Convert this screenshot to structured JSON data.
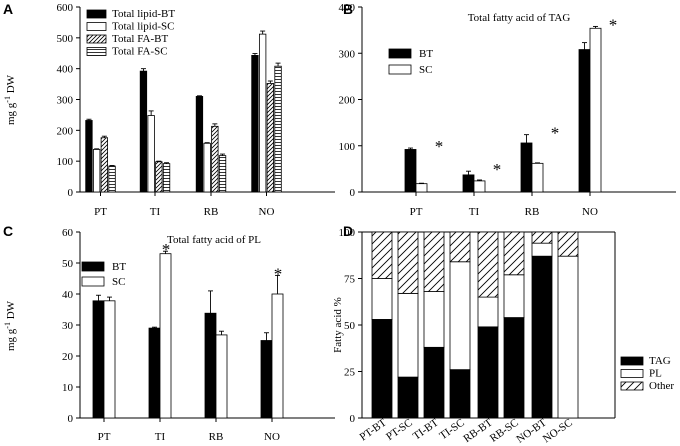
{
  "figure": {
    "panels": [
      "A",
      "B",
      "C",
      "D"
    ]
  },
  "chart_data": [
    {
      "panel": "A",
      "type": "bar",
      "title": "",
      "ylabel": "mg g-1 DW",
      "xlabel": "",
      "ylim": [
        0,
        600
      ],
      "yticks": [
        0,
        100,
        200,
        300,
        400,
        500,
        600
      ],
      "categories": [
        "PT",
        "TI",
        "RB",
        "NO"
      ],
      "series": [
        {
          "name": "Total lipid-BT",
          "pattern": "black",
          "values": [
            232,
            392,
            310,
            443
          ],
          "errors": [
            4,
            8,
            2,
            6
          ]
        },
        {
          "name": "Total lipid-SC",
          "pattern": "white",
          "values": [
            138,
            248,
            158,
            512
          ],
          "errors": [
            2,
            15,
            2,
            10
          ]
        },
        {
          "name": "Total FA-BT",
          "pattern": "diag",
          "values": [
            176,
            98,
            213,
            352
          ],
          "errors": [
            5,
            2,
            8,
            8
          ]
        },
        {
          "name": "Total FA-SC",
          "pattern": "horiz",
          "values": [
            84,
            92,
            118,
            408
          ],
          "errors": [
            2,
            3,
            5,
            10
          ]
        }
      ],
      "markers": [],
      "legend_position": "top-left"
    },
    {
      "panel": "B",
      "type": "bar",
      "title": "Total fatty acid of TAG",
      "ylabel": "",
      "xlabel": "",
      "ylim": [
        0,
        400
      ],
      "yticks": [
        0,
        100,
        200,
        300,
        400
      ],
      "categories": [
        "PT",
        "TI",
        "RB",
        "NO"
      ],
      "series": [
        {
          "name": "BT",
          "pattern": "black",
          "values": [
            92,
            37,
            106,
            308
          ],
          "errors": [
            3,
            8,
            18,
            15
          ]
        },
        {
          "name": "SC",
          "pattern": "white",
          "values": [
            18,
            24,
            62,
            354
          ],
          "errors": [
            1,
            2,
            1,
            4
          ]
        }
      ],
      "markers": [
        {
          "category": "PT",
          "text": "*"
        },
        {
          "category": "TI",
          "text": "*"
        },
        {
          "category": "RB",
          "text": "*"
        },
        {
          "category": "NO",
          "text": "*"
        }
      ],
      "legend_position": "left"
    },
    {
      "panel": "C",
      "type": "bar",
      "title": "Total fatty acid of PL",
      "ylabel": "mg g-1 DW",
      "xlabel": "",
      "ylim": [
        0,
        60
      ],
      "yticks": [
        0,
        10,
        20,
        30,
        40,
        50,
        60
      ],
      "categories": [
        "PT",
        "TI",
        "RB",
        "NO"
      ],
      "series": [
        {
          "name": "BT",
          "pattern": "black",
          "values": [
            37.8,
            29,
            33.8,
            25
          ],
          "errors": [
            1.8,
            0.3,
            7.2,
            2.5
          ]
        },
        {
          "name": "SC",
          "pattern": "white",
          "values": [
            37.8,
            53,
            26.8,
            40
          ],
          "errors": [
            1.2,
            0.8,
            1.2,
            6
          ]
        }
      ],
      "markers": [
        {
          "category": "TI",
          "text": "*"
        },
        {
          "category": "NO",
          "text": "*"
        }
      ],
      "legend_position": "top-left"
    },
    {
      "panel": "D",
      "type": "bar",
      "stacked": true,
      "title": "",
      "ylabel": "Fatty acid %",
      "xlabel": "",
      "ylim": [
        0,
        100
      ],
      "yticks": [
        0,
        25,
        50,
        75,
        100
      ],
      "categories": [
        "PT-BT",
        "PT-SC",
        "TI-BT",
        "TI-SC",
        "RB-BT",
        "RB-SC",
        "NO-BT",
        "NO-SC"
      ],
      "series": [
        {
          "name": "TAG",
          "pattern": "black",
          "values": [
            53,
            22,
            38,
            26,
            49,
            54,
            87,
            0
          ]
        },
        {
          "name": "PL",
          "pattern": "white",
          "values": [
            22,
            45,
            30,
            58,
            16,
            23,
            7,
            87
          ]
        },
        {
          "name": "Other",
          "pattern": "diag",
          "values": [
            25,
            33,
            32,
            16,
            35,
            23,
            6,
            13
          ]
        }
      ],
      "legend_position": "right"
    }
  ]
}
